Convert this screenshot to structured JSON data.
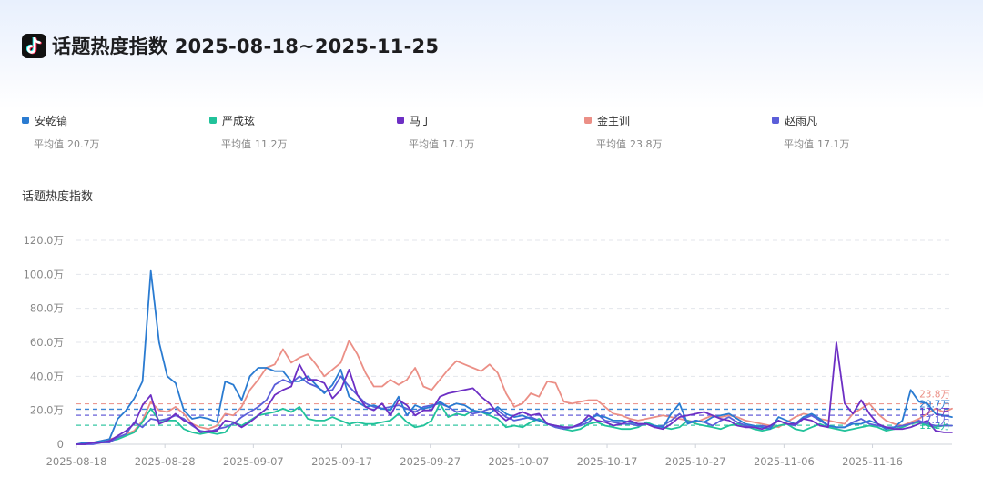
{
  "header": {
    "title": "话题热度指数 2025-08-18~2025-11-25",
    "logo_icon": "tiktok-icon"
  },
  "legend_avg_prefix": "平均值",
  "chart_title": "话题热度指数",
  "chart_data": {
    "type": "line",
    "xlabel": "",
    "ylabel": "",
    "ylim": [
      0,
      120
    ],
    "y_unit": "万",
    "y_ticks": [
      "0",
      "20.0万",
      "40.0万",
      "60.0万",
      "80.0万",
      "100.0万",
      "120.0万"
    ],
    "x_ticks": [
      "2025-08-18",
      "2025-08-28",
      "2025-09-07",
      "2025-09-17",
      "2025-09-27",
      "2025-10-07",
      "2025-10-17",
      "2025-10-27",
      "2025-11-06",
      "2025-11-16"
    ],
    "x_start": "2025-08-18",
    "x_end": "2025-11-25",
    "grid": true,
    "series": [
      {
        "name": "安乾镐",
        "color": "#2a7bd1",
        "average": 20.7,
        "average_label": "20.7万",
        "values": [
          0,
          1,
          1,
          2,
          3,
          15,
          20,
          27,
          37,
          102,
          60,
          40,
          36,
          20,
          15,
          16,
          15,
          13,
          37,
          35,
          26,
          40,
          45,
          45,
          43,
          43,
          37,
          37,
          40,
          35,
          30,
          35,
          44,
          28,
          25,
          22,
          23,
          21,
          20,
          28,
          17,
          23,
          21,
          22,
          25,
          22,
          24,
          23,
          20,
          19,
          18,
          22,
          18,
          16,
          17,
          15,
          14,
          12,
          11,
          10,
          10,
          12,
          15,
          17,
          16,
          14,
          14,
          13,
          12,
          12,
          11,
          10,
          18,
          24,
          12,
          14,
          13,
          16,
          17,
          18,
          15,
          12,
          11,
          10,
          9,
          16,
          14,
          12,
          16,
          18,
          15,
          11,
          10,
          10,
          12,
          12,
          14,
          12,
          9,
          10,
          14,
          32,
          25,
          24,
          18,
          17,
          16
        ]
      },
      {
        "name": "严成玹",
        "color": "#21c29a",
        "average": 11.2,
        "average_label": "11.2万",
        "values": [
          0,
          0,
          1,
          1,
          2,
          3,
          5,
          7,
          13,
          21,
          14,
          14,
          14,
          9,
          7,
          6,
          7,
          6,
          7,
          13,
          11,
          14,
          17,
          18,
          19,
          21,
          19,
          22,
          15,
          14,
          14,
          16,
          14,
          12,
          13,
          12,
          12,
          13,
          14,
          18,
          13,
          10,
          11,
          14,
          24,
          16,
          18,
          17,
          20,
          19,
          17,
          15,
          10,
          11,
          10,
          13,
          15,
          12,
          10,
          9,
          8,
          9,
          12,
          13,
          11,
          10,
          9,
          9,
          10,
          13,
          11,
          10,
          9,
          10,
          14,
          12,
          11,
          10,
          9,
          11,
          12,
          11,
          9,
          8,
          9,
          11,
          12,
          9,
          8,
          10,
          12,
          10,
          9,
          8,
          9,
          10,
          11,
          10,
          8,
          9,
          10,
          12,
          13,
          11,
          10,
          11,
          11
        ]
      },
      {
        "name": "马丁",
        "color": "#6d2fc4",
        "average": 17.1,
        "average_label": "17.1万",
        "values": [
          0,
          0,
          1,
          1,
          2,
          5,
          8,
          12,
          23,
          29,
          12,
          14,
          18,
          14,
          12,
          7,
          8,
          8,
          14,
          13,
          10,
          13,
          17,
          21,
          29,
          32,
          34,
          47,
          38,
          38,
          36,
          27,
          32,
          44,
          29,
          22,
          20,
          24,
          17,
          26,
          23,
          17,
          20,
          20,
          28,
          30,
          31,
          32,
          33,
          28,
          24,
          18,
          14,
          17,
          19,
          17,
          18,
          12,
          11,
          10,
          10,
          12,
          17,
          14,
          13,
          11,
          12,
          14,
          12,
          12,
          10,
          9,
          12,
          16,
          17,
          18,
          19,
          17,
          15,
          14,
          11,
          10,
          10,
          9,
          11,
          14,
          12,
          12,
          15,
          14,
          11,
          10,
          60,
          24,
          18,
          26,
          18,
          12,
          10,
          9,
          9,
          10,
          12,
          14,
          8,
          7,
          7
        ]
      },
      {
        "name": "金主训",
        "color": "#eb8f86",
        "average": 23.8,
        "average_label": "23.8万",
        "values": [
          0,
          0,
          1,
          2,
          3,
          4,
          6,
          8,
          14,
          25,
          20,
          19,
          22,
          18,
          12,
          10,
          9,
          11,
          18,
          17,
          22,
          32,
          38,
          45,
          47,
          56,
          48,
          51,
          53,
          47,
          40,
          44,
          48,
          61,
          53,
          42,
          34,
          34,
          38,
          35,
          38,
          45,
          34,
          32,
          38,
          44,
          49,
          47,
          45,
          43,
          47,
          42,
          30,
          22,
          24,
          30,
          28,
          37,
          36,
          25,
          24,
          25,
          26,
          26,
          22,
          18,
          17,
          15,
          14,
          15,
          16,
          17,
          16,
          15,
          14,
          13,
          15,
          17,
          16,
          17,
          16,
          14,
          13,
          12,
          11,
          10,
          13,
          16,
          18,
          17,
          15,
          14,
          13,
          12,
          18,
          21,
          24,
          18,
          14,
          12,
          11,
          13,
          15,
          18,
          21,
          19,
          21
        ]
      },
      {
        "name": "赵雨凡",
        "color": "#5b5ed9",
        "average": 17.1,
        "average_label": "17.1万",
        "values": [
          0,
          0,
          0,
          1,
          1,
          4,
          6,
          13,
          10,
          15,
          14,
          15,
          17,
          15,
          11,
          8,
          7,
          9,
          10,
          12,
          16,
          19,
          22,
          26,
          35,
          38,
          36,
          40,
          36,
          34,
          31,
          32,
          40,
          34,
          29,
          24,
          22,
          21,
          22,
          23,
          21,
          19,
          22,
          23,
          24,
          22,
          19,
          20,
          18,
          19,
          21,
          20,
          16,
          14,
          15,
          16,
          14,
          12,
          10,
          9,
          10,
          11,
          13,
          18,
          14,
          13,
          12,
          12,
          11,
          12,
          10,
          11,
          14,
          18,
          13,
          14,
          13,
          11,
          14,
          16,
          13,
          11,
          10,
          11,
          10,
          14,
          12,
          11,
          15,
          17,
          14,
          11,
          10,
          10,
          13,
          15,
          12,
          11,
          10,
          10,
          11,
          12,
          14,
          12,
          11,
          11,
          11
        ]
      }
    ]
  }
}
